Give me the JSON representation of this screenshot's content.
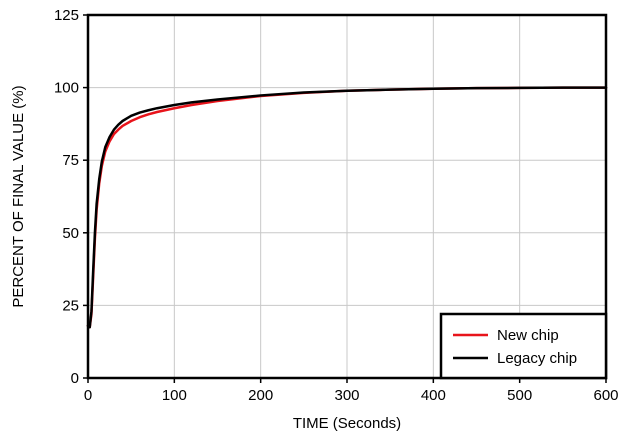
{
  "chart_data": {
    "type": "line",
    "title": "",
    "xlabel": "TIME (Seconds)",
    "ylabel": "PERCENT OF FINAL VALUE (%)",
    "xlim": [
      0,
      600
    ],
    "ylim": [
      0,
      125
    ],
    "xticks": [
      0,
      100,
      200,
      300,
      400,
      500,
      600
    ],
    "yticks": [
      0,
      25,
      50,
      75,
      100,
      125
    ],
    "xtick_labels": [
      "0",
      "100",
      "200",
      "300",
      "400",
      "500",
      "600"
    ],
    "ytick_labels": [
      "0",
      "25",
      "50",
      "75",
      "100",
      "125"
    ],
    "grid": true,
    "legend_position": "bottom-right",
    "series": [
      {
        "name": "New chip",
        "color": "#e8141b",
        "x": [
          0,
          2,
          4,
          6,
          8,
          10,
          13,
          16,
          20,
          25,
          30,
          35,
          40,
          50,
          60,
          70,
          80,
          100,
          120,
          150,
          200,
          250,
          300,
          350,
          400,
          450,
          500,
          550,
          600
        ],
        "y": [
          18,
          17.5,
          22,
          35,
          48,
          58,
          67,
          73,
          78,
          81.5,
          84,
          85.5,
          86.8,
          88.5,
          89.8,
          90.8,
          91.6,
          92.9,
          94,
          95.4,
          97.1,
          98.2,
          98.9,
          99.3,
          99.6,
          99.8,
          99.9,
          100,
          100
        ]
      },
      {
        "name": "Legacy chip",
        "color": "#000000",
        "x": [
          0,
          2,
          4,
          6,
          8,
          10,
          13,
          16,
          20,
          25,
          30,
          35,
          40,
          50,
          60,
          70,
          80,
          100,
          120,
          150,
          200,
          250,
          300,
          350,
          400,
          450,
          500,
          550,
          600
        ],
        "y": [
          18,
          17.5,
          23,
          37,
          50,
          60,
          68.5,
          74.5,
          79.5,
          83,
          85.5,
          87.2,
          88.5,
          90.3,
          91.4,
          92.2,
          92.9,
          94,
          94.9,
          95.9,
          97.3,
          98.3,
          98.9,
          99.3,
          99.6,
          99.8,
          99.9,
          100,
          100
        ]
      }
    ]
  }
}
